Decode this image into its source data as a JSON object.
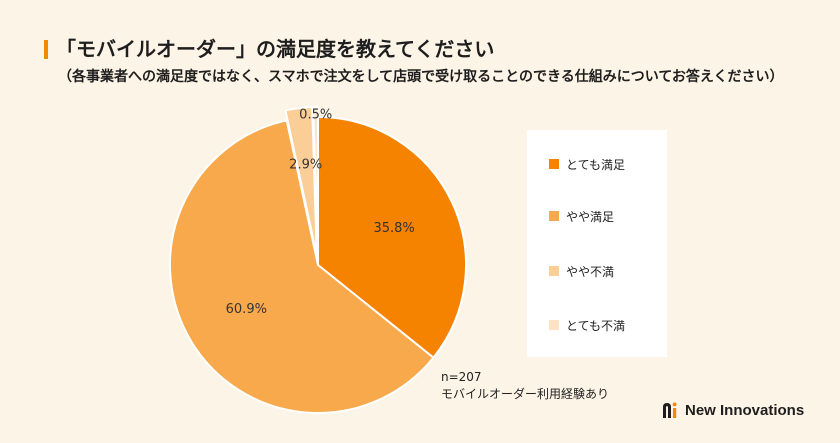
{
  "chart_data": {
    "type": "pie",
    "title": "「モバイルオーダー」の満足度を教えてください",
    "subtitle": "（各事業者への満足度ではなく、スマホで注文をして店頭で受け取ることのできる仕組みについてお答えください）",
    "categories": [
      "とても満足",
      "やや満足",
      "やや不満",
      "とても不満"
    ],
    "values": [
      35.8,
      60.9,
      2.9,
      0.5
    ],
    "value_labels": [
      "35.8%",
      "60.9%",
      "2.9%",
      "0.5%"
    ],
    "colors": [
      "#F58300",
      "#F8A94C",
      "#FBCD97",
      "#FDE3C3"
    ],
    "start_angle": "12 o'clock, clockwise",
    "legend_position": "right",
    "annotations": [
      "n=207",
      "モバイルオーダー利用経験あり"
    ]
  },
  "theme": {
    "background": "#FCF4E6",
    "accent": "#F18A00"
  },
  "brand": {
    "name": "New Innovations",
    "icon": "new-innovations-logo-icon"
  }
}
